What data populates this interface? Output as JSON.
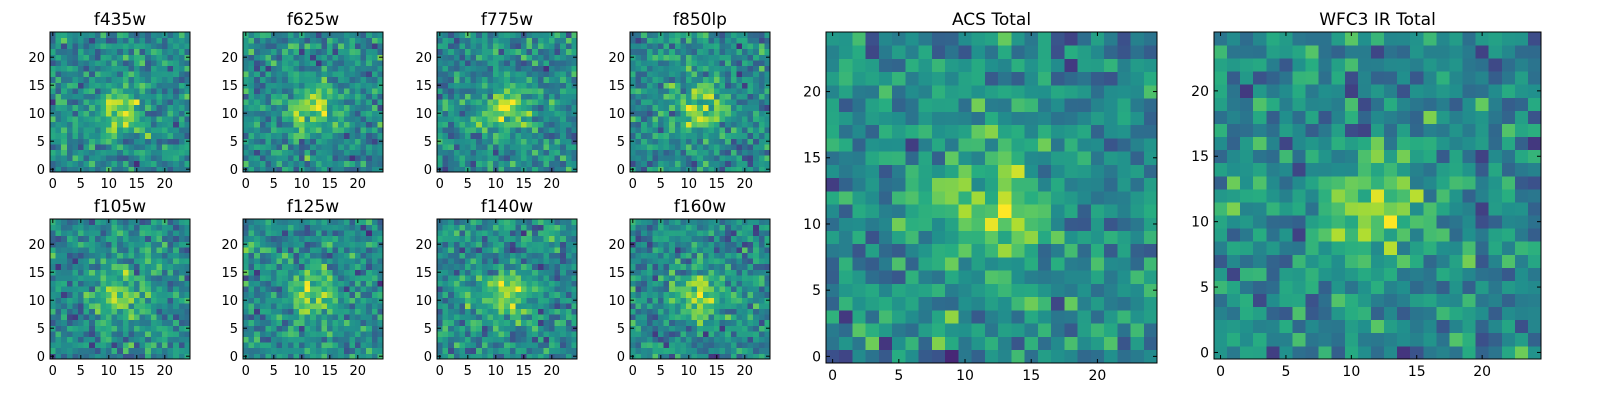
{
  "colormap": "viridis",
  "colors": {
    "viridis_stops": [
      "#440154",
      "#472c7a",
      "#3b518b",
      "#2c718e",
      "#21908d",
      "#27ad81",
      "#5cc863",
      "#aadc32",
      "#fde725"
    ],
    "axis": "#000000",
    "background": "#ffffff"
  },
  "chart_data": [
    {
      "type": "heatmap",
      "title": "f435w",
      "grid": false,
      "shape": [
        25,
        25
      ],
      "xticks": [
        "0",
        "5",
        "10",
        "15",
        "20"
      ],
      "yticks": [
        "0",
        "5",
        "10",
        "15",
        "20"
      ],
      "xlim": [
        -0.5,
        24.5
      ],
      "ylim": [
        -0.5,
        24.5
      ],
      "values": "noise",
      "seed": 11
    },
    {
      "type": "heatmap",
      "title": "f625w",
      "grid": false,
      "shape": [
        25,
        25
      ],
      "xticks": [
        "0",
        "5",
        "10",
        "15",
        "20"
      ],
      "yticks": [
        "0",
        "5",
        "10",
        "15",
        "20"
      ],
      "xlim": [
        -0.5,
        24.5
      ],
      "ylim": [
        -0.5,
        24.5
      ],
      "values": "noise",
      "seed": 23
    },
    {
      "type": "heatmap",
      "title": "f775w",
      "grid": false,
      "shape": [
        25,
        25
      ],
      "xticks": [
        "0",
        "5",
        "10",
        "15",
        "20"
      ],
      "yticks": [
        "0",
        "5",
        "10",
        "15",
        "20"
      ],
      "xlim": [
        -0.5,
        24.5
      ],
      "ylim": [
        -0.5,
        24.5
      ],
      "values": "noise",
      "seed": 37
    },
    {
      "type": "heatmap",
      "title": "f850lp",
      "grid": false,
      "shape": [
        25,
        25
      ],
      "xticks": [
        "0",
        "5",
        "10",
        "15",
        "20"
      ],
      "yticks": [
        "0",
        "5",
        "10",
        "15",
        "20"
      ],
      "xlim": [
        -0.5,
        24.5
      ],
      "ylim": [
        -0.5,
        24.5
      ],
      "values": "noise",
      "seed": 41
    },
    {
      "type": "heatmap",
      "title": "f105w",
      "grid": false,
      "shape": [
        25,
        25
      ],
      "xticks": [
        "0",
        "5",
        "10",
        "15",
        "20"
      ],
      "yticks": [
        "0",
        "5",
        "10",
        "15",
        "20"
      ],
      "xlim": [
        -0.5,
        24.5
      ],
      "ylim": [
        -0.5,
        24.5
      ],
      "values": "noise",
      "seed": 53
    },
    {
      "type": "heatmap",
      "title": "f125w",
      "grid": false,
      "shape": [
        25,
        25
      ],
      "xticks": [
        "0",
        "5",
        "10",
        "15",
        "20"
      ],
      "yticks": [
        "0",
        "5",
        "10",
        "15",
        "20"
      ],
      "xlim": [
        -0.5,
        24.5
      ],
      "ylim": [
        -0.5,
        24.5
      ],
      "values": "noise",
      "seed": 61
    },
    {
      "type": "heatmap",
      "title": "f140w",
      "grid": false,
      "shape": [
        25,
        25
      ],
      "xticks": [
        "0",
        "5",
        "10",
        "15",
        "20"
      ],
      "yticks": [
        "0",
        "5",
        "10",
        "15",
        "20"
      ],
      "xlim": [
        -0.5,
        24.5
      ],
      "ylim": [
        -0.5,
        24.5
      ],
      "values": "noise",
      "seed": 71
    },
    {
      "type": "heatmap",
      "title": "f160w",
      "grid": false,
      "shape": [
        25,
        25
      ],
      "xticks": [
        "0",
        "5",
        "10",
        "15",
        "20"
      ],
      "yticks": [
        "0",
        "5",
        "10",
        "15",
        "20"
      ],
      "xlim": [
        -0.5,
        24.5
      ],
      "ylim": [
        -0.5,
        24.5
      ],
      "values": "noise",
      "seed": 83
    },
    {
      "type": "heatmap",
      "title": "ACS Total",
      "grid": false,
      "shape": [
        25,
        25
      ],
      "xticks": [
        "0",
        "5",
        "10",
        "15",
        "20"
      ],
      "yticks": [
        "0",
        "5",
        "10",
        "15",
        "20"
      ],
      "xlim": [
        -0.5,
        24.5
      ],
      "ylim": [
        -0.5,
        24.5
      ],
      "values": "noise",
      "seed": 97
    },
    {
      "type": "heatmap",
      "title": "WFC3 IR Total",
      "grid": false,
      "shape": [
        25,
        25
      ],
      "xticks": [
        "0",
        "5",
        "10",
        "15",
        "20"
      ],
      "yticks": [
        "0",
        "5",
        "10",
        "15",
        "20"
      ],
      "xlim": [
        -0.5,
        24.5
      ],
      "ylim": [
        -0.5,
        24.5
      ],
      "values": "noise",
      "seed": 101
    }
  ]
}
